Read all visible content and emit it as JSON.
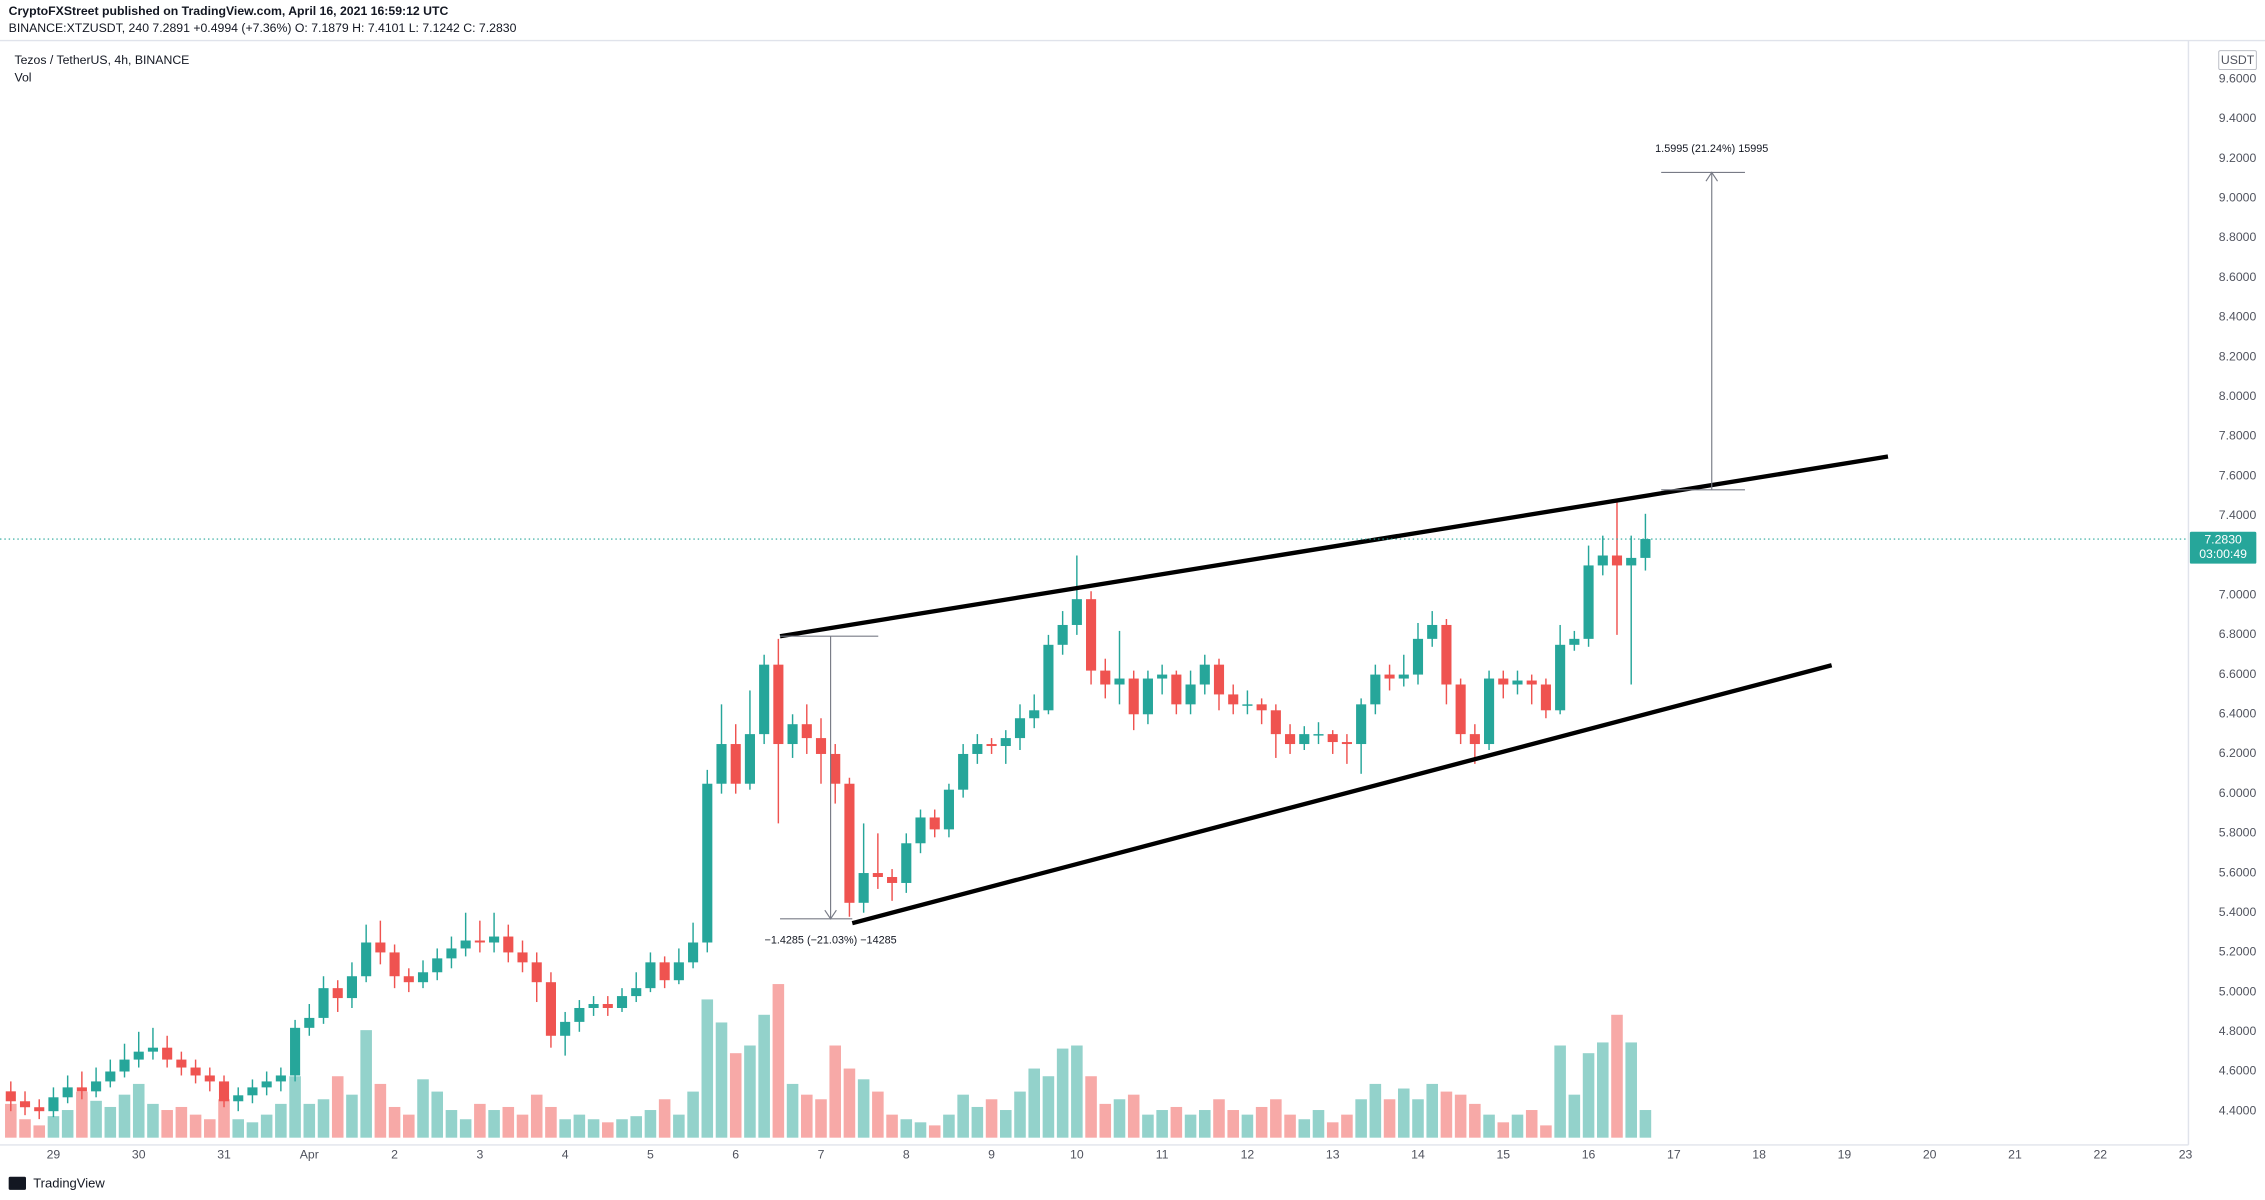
{
  "header": {
    "publisher": "CryptoFXStreet published on TradingView.com, April 16, 2021 16:59:12 UTC",
    "symbol_line": "BINANCE:XTZUSDT, 240  7.2891  +0.4994 (+7.36%)  O: 7.1879  H: 7.4101  L: 7.1242  C: 7.2830"
  },
  "footer": {
    "brand": "TradingView"
  },
  "chart_data": {
    "type": "candlestick",
    "title": "Tezos / TetherUS, 4h, BINANCE",
    "volume_label": "Vol",
    "currency": "USDT",
    "up_color": "#26a69a",
    "down_color": "#ef5350",
    "volume_up_color": "#93d2cb",
    "volume_down_color": "#f7a9a7",
    "grid": false,
    "xtick_labels": [
      "29",
      "30",
      "31",
      "Apr",
      "2",
      "3",
      "4",
      "5",
      "6",
      "7",
      "8",
      "9",
      "10",
      "11",
      "12",
      "13",
      "14",
      "15",
      "16",
      "17",
      "18",
      "19",
      "20",
      "21",
      "22",
      "23"
    ],
    "ylim": [
      4.23,
      9.78
    ],
    "yticks": [
      {
        "value": 4.4,
        "label": "4.4000"
      },
      {
        "value": 4.6,
        "label": "4.6000"
      },
      {
        "value": 4.8,
        "label": "4.8000"
      },
      {
        "value": 5.0,
        "label": "5.0000"
      },
      {
        "value": 5.2,
        "label": "5.2000"
      },
      {
        "value": 5.4,
        "label": "5.4000"
      },
      {
        "value": 5.6,
        "label": "5.6000"
      },
      {
        "value": 5.8,
        "label": "5.8000"
      },
      {
        "value": 6.0,
        "label": "6.0000"
      },
      {
        "value": 6.2,
        "label": "6.2000"
      },
      {
        "value": 6.4,
        "label": "6.4000"
      },
      {
        "value": 6.6,
        "label": "6.6000"
      },
      {
        "value": 6.8,
        "label": "6.8000"
      },
      {
        "value": 7.0,
        "label": "7.0000"
      },
      {
        "value": 7.2,
        "label": "7.2000"
      },
      {
        "value": 7.4,
        "label": "7.4000"
      },
      {
        "value": 7.6,
        "label": "7.6000"
      },
      {
        "value": 7.8,
        "label": "7.8000"
      },
      {
        "value": 8.0,
        "label": "8.0000"
      },
      {
        "value": 8.2,
        "label": "8.2000"
      },
      {
        "value": 8.4,
        "label": "8.4000"
      },
      {
        "value": 8.6,
        "label": "8.6000"
      },
      {
        "value": 8.8,
        "label": "8.8000"
      },
      {
        "value": 9.0,
        "label": "9.0000"
      },
      {
        "value": 9.2,
        "label": "9.2000"
      },
      {
        "value": 9.4,
        "label": "9.4000"
      },
      {
        "value": 9.6,
        "label": "9.6000"
      }
    ],
    "open": [
      4.5,
      4.45,
      4.42,
      4.4,
      4.47,
      4.52,
      4.5,
      4.55,
      4.6,
      4.66,
      4.7,
      4.72,
      4.66,
      4.62,
      4.58,
      4.55,
      4.45,
      4.48,
      4.52,
      4.55,
      4.58,
      4.82,
      4.87,
      5.02,
      4.97,
      5.08,
      5.25,
      5.2,
      5.08,
      5.05,
      5.1,
      5.17,
      5.22,
      5.26,
      5.25,
      5.28,
      5.2,
      5.15,
      5.05,
      4.78,
      4.85,
      4.92,
      4.94,
      4.92,
      4.98,
      5.02,
      5.15,
      5.06,
      5.15,
      5.25,
      6.05,
      6.25,
      6.05,
      6.3,
      6.65,
      6.25,
      6.35,
      6.28,
      6.2,
      6.05,
      5.45,
      5.6,
      5.58,
      5.55,
      5.75,
      5.88,
      5.82,
      6.02,
      6.2,
      6.25,
      6.24,
      6.28,
      6.38,
      6.42,
      6.75,
      6.85,
      6.98,
      6.62,
      6.55,
      6.58,
      6.4,
      6.58,
      6.6,
      6.45,
      6.55,
      6.65,
      6.5,
      6.45,
      6.45,
      6.42,
      6.3,
      6.25,
      6.3,
      6.3,
      6.26,
      6.25,
      6.45,
      6.6,
      6.58,
      6.6,
      6.78,
      6.85,
      6.55,
      6.3,
      6.25,
      6.58,
      6.55,
      6.57,
      6.55,
      6.42,
      6.75,
      6.78,
      7.15,
      7.2,
      7.15,
      7.1879
    ],
    "high": [
      4.55,
      4.5,
      4.46,
      4.52,
      4.58,
      4.6,
      4.62,
      4.66,
      4.74,
      4.8,
      4.82,
      4.78,
      4.7,
      4.66,
      4.62,
      4.58,
      4.52,
      4.56,
      4.6,
      4.62,
      4.86,
      4.94,
      5.08,
      5.06,
      5.15,
      5.34,
      5.36,
      5.24,
      5.12,
      5.16,
      5.22,
      5.28,
      5.4,
      5.36,
      5.4,
      5.34,
      5.26,
      5.2,
      5.1,
      4.9,
      4.96,
      4.98,
      4.98,
      5.02,
      5.1,
      5.2,
      5.18,
      5.22,
      5.35,
      6.12,
      6.45,
      6.35,
      6.52,
      6.7,
      6.78,
      6.4,
      6.45,
      6.38,
      6.25,
      6.08,
      5.85,
      5.8,
      5.62,
      5.8,
      5.92,
      5.92,
      6.05,
      6.25,
      6.3,
      6.28,
      6.32,
      6.45,
      6.5,
      6.8,
      6.92,
      7.2,
      7.02,
      6.68,
      6.82,
      6.62,
      6.62,
      6.65,
      6.62,
      6.62,
      6.7,
      6.68,
      6.55,
      6.52,
      6.48,
      6.45,
      6.35,
      6.34,
      6.36,
      6.32,
      6.3,
      6.48,
      6.65,
      6.65,
      6.7,
      6.86,
      6.92,
      6.88,
      6.58,
      6.35,
      6.62,
      6.62,
      6.62,
      6.6,
      6.58,
      6.85,
      6.82,
      7.25,
      7.3,
      7.48,
      7.3,
      7.4101
    ],
    "low": [
      4.4,
      4.38,
      4.36,
      4.37,
      4.44,
      4.46,
      4.47,
      4.52,
      4.57,
      4.62,
      4.66,
      4.62,
      4.58,
      4.54,
      4.5,
      4.42,
      4.4,
      4.44,
      4.48,
      4.5,
      4.55,
      4.78,
      4.84,
      4.9,
      4.92,
      5.05,
      5.14,
      5.02,
      5.0,
      5.02,
      5.06,
      5.12,
      5.18,
      5.2,
      5.2,
      5.15,
      5.1,
      4.95,
      4.72,
      4.68,
      4.8,
      4.88,
      4.88,
      4.9,
      4.95,
      5.0,
      5.02,
      5.04,
      5.12,
      5.2,
      6.0,
      6.0,
      6.02,
      6.25,
      5.85,
      6.18,
      6.2,
      6.05,
      5.95,
      5.38,
      5.4,
      5.52,
      5.46,
      5.5,
      5.7,
      5.78,
      5.78,
      5.98,
      6.15,
      6.2,
      6.15,
      6.22,
      6.33,
      6.4,
      6.7,
      6.8,
      6.55,
      6.48,
      6.45,
      6.32,
      6.35,
      6.5,
      6.4,
      6.4,
      6.5,
      6.42,
      6.4,
      6.4,
      6.35,
      6.18,
      6.2,
      6.22,
      6.25,
      6.2,
      6.15,
      6.1,
      6.4,
      6.52,
      6.54,
      6.55,
      6.74,
      6.45,
      6.25,
      6.15,
      6.22,
      6.48,
      6.5,
      6.45,
      6.38,
      6.4,
      6.72,
      6.74,
      7.1,
      6.8,
      6.55,
      7.1242
    ],
    "close": [
      4.45,
      4.42,
      4.4,
      4.47,
      4.52,
      4.5,
      4.55,
      4.6,
      4.66,
      4.7,
      4.72,
      4.66,
      4.62,
      4.58,
      4.55,
      4.45,
      4.48,
      4.52,
      4.55,
      4.58,
      4.82,
      4.87,
      5.02,
      4.97,
      5.08,
      5.25,
      5.2,
      5.08,
      5.05,
      5.1,
      5.17,
      5.22,
      5.26,
      5.25,
      5.28,
      5.2,
      5.15,
      5.05,
      4.78,
      4.85,
      4.92,
      4.94,
      4.92,
      4.98,
      5.02,
      5.15,
      5.06,
      5.15,
      5.25,
      6.05,
      6.25,
      6.05,
      6.3,
      6.65,
      6.25,
      6.35,
      6.28,
      6.2,
      6.05,
      5.45,
      5.6,
      5.58,
      5.55,
      5.75,
      5.88,
      5.82,
      6.02,
      6.2,
      6.25,
      6.24,
      6.28,
      6.38,
      6.42,
      6.75,
      6.85,
      6.98,
      6.62,
      6.55,
      6.58,
      6.4,
      6.58,
      6.6,
      6.45,
      6.55,
      6.65,
      6.5,
      6.45,
      6.45,
      6.42,
      6.3,
      6.25,
      6.3,
      6.3,
      6.26,
      6.25,
      6.45,
      6.6,
      6.58,
      6.6,
      6.78,
      6.85,
      6.55,
      6.3,
      6.25,
      6.58,
      6.55,
      6.57,
      6.55,
      6.42,
      6.75,
      6.78,
      7.15,
      7.2,
      7.15,
      7.1879,
      7.283
    ],
    "volume": [
      22,
      12,
      8,
      14,
      18,
      30,
      24,
      20,
      28,
      35,
      22,
      18,
      20,
      15,
      12,
      25,
      12,
      10,
      15,
      22,
      40,
      22,
      25,
      40,
      28,
      70,
      35,
      20,
      15,
      38,
      30,
      18,
      12,
      22,
      18,
      20,
      15,
      28,
      20,
      12,
      15,
      12,
      10,
      12,
      14,
      18,
      25,
      15,
      30,
      90,
      75,
      55,
      60,
      80,
      100,
      35,
      28,
      25,
      60,
      45,
      38,
      30,
      15,
      12,
      10,
      8,
      15,
      28,
      20,
      25,
      18,
      30,
      45,
      40,
      58,
      60,
      40,
      22,
      25,
      28,
      15,
      18,
      20,
      15,
      18,
      25,
      18,
      15,
      20,
      25,
      15,
      12,
      18,
      10,
      15,
      25,
      35,
      25,
      32,
      25,
      35,
      30,
      28,
      22,
      15,
      10,
      15,
      18,
      8,
      60,
      28,
      55,
      62,
      80,
      62,
      18
    ],
    "price_tag": {
      "value": 7.283,
      "label": "7.2830",
      "countdown": "03:00:49"
    },
    "annotations": {
      "upper_measure": "1.5995 (21.24%) 15995",
      "lower_measure": "−1.4285 (−21.03%) −14285"
    }
  }
}
